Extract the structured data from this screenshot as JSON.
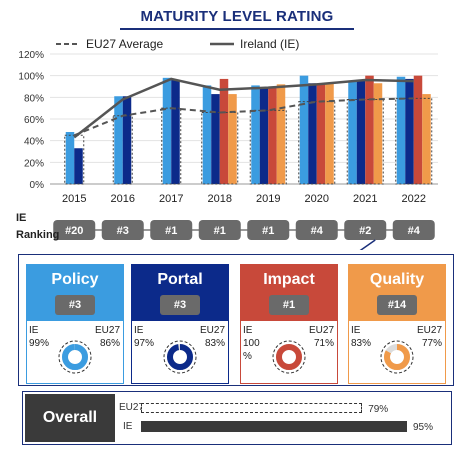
{
  "title": "MATURITY LEVEL RATING",
  "chart_data": {
    "type": "bar",
    "legend": [
      "EU27 Average",
      "Ireland (IE)"
    ],
    "categories": [
      "2015",
      "2016",
      "2017",
      "2018",
      "2019",
      "2020",
      "2021",
      "2022"
    ],
    "ylim": [
      0,
      120
    ],
    "yticks": [
      "0%",
      "20%",
      "40%",
      "60%",
      "80%",
      "100%",
      "120%"
    ],
    "ytick_values": [
      0,
      20,
      40,
      60,
      80,
      100,
      120
    ],
    "series": [
      {
        "name": "Policy",
        "color": "#3b9ce0",
        "values": [
          48,
          81,
          98,
          91,
          91,
          100,
          95,
          99
        ]
      },
      {
        "name": "Portal",
        "color": "#0c2a8a",
        "values": [
          33,
          81,
          96,
          83,
          89,
          93,
          96,
          97
        ]
      },
      {
        "name": "Impact",
        "color": "#c8493a",
        "values": [
          null,
          null,
          null,
          97,
          90,
          93,
          100,
          100
        ]
      },
      {
        "name": "Quality",
        "color": "#f09a4a",
        "values": [
          null,
          null,
          null,
          83,
          92,
          93,
          93,
          83
        ]
      }
    ],
    "eu_average": [
      45,
      63,
      70,
      66,
      68,
      76,
      78,
      79
    ],
    "ireland_line": [
      43,
      78,
      97,
      87,
      89,
      92,
      96,
      95
    ],
    "ie_ranking": [
      "#20",
      "#3",
      "#1",
      "#1",
      "#1",
      "#4",
      "#2",
      "#4"
    ]
  },
  "ranking_label_1": "IE",
  "ranking_label_2": "Ranking",
  "cards": [
    {
      "name": "Policy",
      "rank": "#3",
      "ie_label": "IE",
      "ie_value": "99%",
      "eu_label": "EU27",
      "eu_value": "86%",
      "ie": 99,
      "eu": 86,
      "color": "#3b9ce0"
    },
    {
      "name": "Portal",
      "rank": "#3",
      "ie_label": "IE",
      "ie_value": "97%",
      "eu_label": "EU27",
      "eu_value": "83%",
      "ie": 97,
      "eu": 83,
      "color": "#0c2a8a"
    },
    {
      "name": "Impact",
      "rank": "#1",
      "ie_label": "IE",
      "ie_value": "100",
      "ie_unit": "%",
      "eu_label": "EU27",
      "eu_value": "71%",
      "ie": 100,
      "eu": 71,
      "color": "#c8493a"
    },
    {
      "name": "Quality",
      "rank": "#14",
      "ie_label": "IE",
      "ie_value": "83%",
      "eu_label": "EU27",
      "eu_value": "77%",
      "ie": 83,
      "eu": 77,
      "color": "#f09a4a"
    }
  ],
  "overall": {
    "label": "Overall",
    "eu_label": "EU27",
    "eu_value": "79%",
    "eu": 79,
    "ie_label": "IE",
    "ie_value": "95%",
    "ie": 95
  }
}
